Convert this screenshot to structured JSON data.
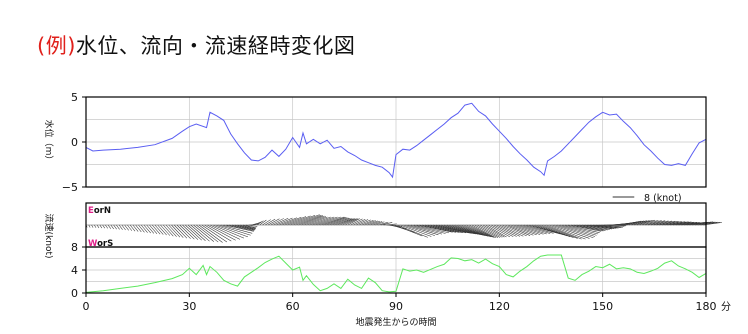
{
  "title": {
    "prefix": "(例)",
    "text": "水位、流向・流速経時変化図"
  },
  "chart_data": {
    "type": "line",
    "x_label": "地震発生からの時間",
    "x_unit": "分",
    "x_range": [
      0,
      180
    ],
    "x_ticks": [
      0,
      30,
      60,
      90,
      120,
      150,
      180
    ],
    "panels": [
      {
        "name": "water_level",
        "type": "line",
        "y_label": "水位（m）",
        "y_range": [
          -5,
          5
        ],
        "y_ticks": [
          5,
          0,
          -5
        ],
        "grid": true,
        "color": "#5a5ef2",
        "x": [
          0,
          2,
          5,
          10,
          15,
          20,
          25,
          28,
          30,
          32,
          35,
          36,
          38,
          40,
          42,
          44,
          46,
          48,
          50,
          52,
          54,
          56,
          58,
          60,
          62,
          63,
          64,
          66,
          68,
          70,
          72,
          74,
          76,
          78,
          80,
          82,
          84,
          86,
          88,
          89,
          90,
          92,
          94,
          96,
          98,
          100,
          102,
          104,
          106,
          108,
          110,
          112,
          114,
          116,
          118,
          120,
          122,
          124,
          126,
          128,
          130,
          132,
          133,
          134,
          136,
          138,
          140,
          142,
          144,
          146,
          148,
          150,
          152,
          154,
          156,
          158,
          160,
          162,
          164,
          166,
          168,
          170,
          172,
          174,
          176,
          178,
          180
        ],
        "y": [
          -0.6,
          -1.0,
          -0.9,
          -0.8,
          -0.6,
          -0.3,
          0.4,
          1.2,
          1.7,
          2.0,
          1.6,
          3.3,
          2.9,
          2.4,
          0.9,
          -0.2,
          -1.2,
          -2.0,
          -2.1,
          -1.7,
          -0.9,
          -1.6,
          -0.8,
          0.5,
          -0.6,
          1.0,
          -0.2,
          0.3,
          -0.2,
          0.2,
          -0.7,
          -0.5,
          -1.1,
          -1.5,
          -2.0,
          -2.3,
          -2.6,
          -2.8,
          -3.4,
          -3.9,
          -1.4,
          -0.8,
          -0.9,
          -0.4,
          0.2,
          0.8,
          1.4,
          2.0,
          2.7,
          3.2,
          4.1,
          4.3,
          3.4,
          2.9,
          2.0,
          1.2,
          0.4,
          -0.5,
          -1.3,
          -2.0,
          -2.8,
          -3.3,
          -3.7,
          -2.1,
          -1.6,
          -1.0,
          -0.2,
          0.6,
          1.4,
          2.2,
          2.8,
          3.3,
          3.0,
          3.1,
          2.3,
          1.6,
          0.7,
          -0.3,
          -1.0,
          -1.8,
          -2.5,
          -2.6,
          -2.4,
          -2.6,
          -1.3,
          -0.1,
          0.3
        ]
      },
      {
        "name": "flow_direction",
        "type": "vector",
        "y_label": "流速(knot)",
        "label_top": "EorN",
        "label_bottom": "WorS",
        "label_initial_color": "#e0208a",
        "scale_label": "8 (knot)",
        "scale_value": 8,
        "direction": [
          "E/N when positive, W/S when negative"
        ],
        "x": [
          0,
          5,
          10,
          15,
          20,
          25,
          30,
          33,
          36,
          38,
          40,
          42,
          44,
          46,
          48,
          50,
          53,
          56,
          60,
          64,
          68,
          72,
          76,
          80,
          84,
          86,
          88,
          90,
          93,
          96,
          100,
          104,
          108,
          112,
          116,
          120,
          124,
          128,
          132,
          134,
          136,
          140,
          144,
          148,
          152,
          156,
          160,
          164,
          168,
          172,
          176,
          180
        ],
        "u": [
          0.2,
          0.4,
          0.6,
          1.0,
          1.4,
          2.0,
          3.0,
          4.0,
          5.0,
          5.5,
          5.0,
          4.0,
          3.0,
          2.0,
          1.5,
          1.0,
          2.0,
          3.0,
          4.5,
          3.5,
          4.0,
          3.0,
          2.0,
          2.0,
          1.5,
          2.0,
          3.0,
          5.0,
          5.5,
          6.0,
          6.5,
          6.0,
          5.0,
          4.0,
          3.5,
          4.0,
          4.5,
          5.0,
          5.5,
          6.0,
          6.5,
          5.5,
          5.0,
          4.5,
          3.5,
          3.0,
          3.0,
          3.5,
          4.0,
          4.0,
          3.5,
          3.0
        ],
        "v": [
          -0.3,
          -0.4,
          -0.6,
          -0.9,
          -1.2,
          -1.6,
          -2.0,
          -2.2,
          -1.8,
          -1.4,
          -0.8,
          -0.6,
          -0.5,
          -0.3,
          0.3,
          0.6,
          0.8,
          0.9,
          1.3,
          1.0,
          1.0,
          0.8,
          0.8,
          0.6,
          0.4,
          0.3,
          -0.5,
          -1.6,
          -1.2,
          -0.9,
          -1.0,
          -1.2,
          -1.4,
          -1.6,
          -1.5,
          -1.4,
          -1.2,
          -1.0,
          -1.6,
          -1.8,
          -1.6,
          -0.8,
          -0.5,
          -0.3,
          0.2,
          0.5,
          0.6,
          0.5,
          0.4,
          0.3,
          0.4,
          0.3
        ]
      },
      {
        "name": "flow_speed",
        "type": "line",
        "y_label": "流速(knot)",
        "y_range": [
          0,
          8
        ],
        "y_ticks": [
          8,
          4,
          0
        ],
        "grid": true,
        "color": "#5ee85e",
        "x": [
          0,
          5,
          10,
          15,
          20,
          25,
          28,
          30,
          32,
          34,
          35,
          36,
          38,
          40,
          42,
          44,
          46,
          48,
          50,
          52,
          54,
          56,
          58,
          60,
          62,
          63,
          64,
          66,
          68,
          70,
          72,
          74,
          76,
          78,
          80,
          82,
          84,
          86,
          88,
          90,
          92,
          94,
          96,
          98,
          100,
          102,
          104,
          106,
          108,
          110,
          112,
          114,
          116,
          118,
          120,
          122,
          124,
          126,
          128,
          130,
          132,
          134,
          136,
          138,
          140,
          142,
          144,
          146,
          148,
          150,
          152,
          154,
          156,
          158,
          160,
          162,
          164,
          166,
          168,
          170,
          172,
          174,
          176,
          178,
          180
        ],
        "y": [
          0.1,
          0.4,
          0.8,
          1.2,
          1.8,
          2.5,
          3.2,
          4.3,
          3.2,
          4.8,
          3.2,
          4.6,
          3.6,
          2.2,
          1.6,
          1.2,
          2.8,
          3.6,
          4.4,
          5.3,
          5.9,
          6.4,
          5.2,
          4.0,
          4.5,
          2.2,
          3.0,
          1.5,
          0.4,
          0.8,
          1.6,
          0.8,
          2.4,
          1.4,
          0.8,
          2.6,
          1.8,
          0.4,
          0.2,
          0.3,
          4.2,
          3.8,
          4.0,
          3.6,
          4.1,
          4.6,
          5.0,
          6.1,
          6.0,
          5.6,
          5.8,
          5.2,
          5.9,
          5.1,
          4.6,
          3.2,
          2.8,
          3.8,
          4.6,
          5.6,
          6.4,
          6.6,
          6.6,
          6.6,
          2.6,
          2.2,
          3.2,
          3.8,
          4.6,
          4.4,
          5.0,
          4.2,
          4.4,
          4.2,
          3.6,
          3.4,
          3.8,
          4.3,
          5.2,
          5.6,
          4.7,
          4.2,
          3.6,
          2.7,
          3.4
        ]
      }
    ]
  }
}
